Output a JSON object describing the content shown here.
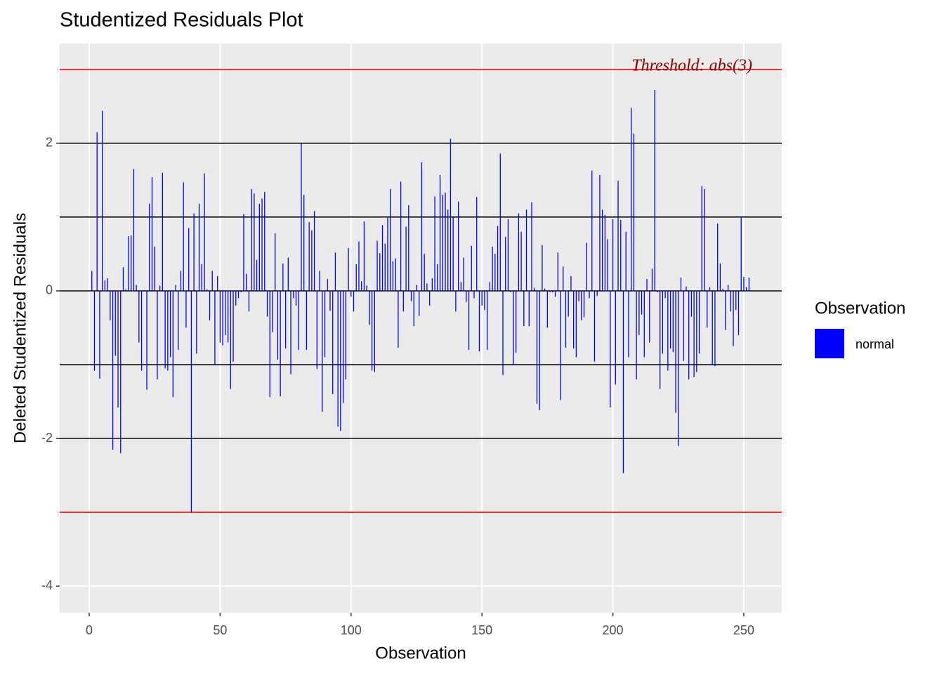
{
  "chart_data": {
    "type": "bar",
    "title": "Studentized Residuals Plot",
    "x_label": "Observation",
    "y_label": "Deleted Studentized Residuals",
    "annotation": "Threshold: abs(3)",
    "legend_title": "Observation",
    "legend_position": "right",
    "grid": true,
    "xlim": [
      -11.27,
      264.5
    ],
    "ylim": [
      -4.36,
      3.35
    ],
    "xticks": [
      0,
      50,
      100,
      150,
      200,
      250
    ],
    "yticks": [
      -4,
      -2,
      0,
      2
    ],
    "threshold_lines": [
      -3,
      3
    ],
    "threshold_color": "#ff0000",
    "reference_lines": [
      -2,
      -1,
      0,
      1,
      2
    ],
    "reference_color": "#000000",
    "series": [
      {
        "name": "normal",
        "color": "#0000ff",
        "x": [
          1,
          2,
          3,
          4,
          5,
          6,
          7,
          8,
          9,
          10,
          11,
          12,
          13,
          14,
          15,
          16,
          17,
          18,
          19,
          20,
          21,
          22,
          23,
          24,
          25,
          26,
          27,
          28,
          29,
          30,
          31,
          32,
          33,
          34,
          35,
          36,
          37,
          38,
          39,
          40,
          41,
          42,
          43,
          44,
          45,
          46,
          47,
          48,
          49,
          50,
          51,
          52,
          53,
          54,
          55,
          56,
          57,
          58,
          59,
          60,
          61,
          62,
          63,
          64,
          65,
          66,
          67,
          68,
          69,
          70,
          71,
          72,
          73,
          74,
          75,
          76,
          77,
          78,
          79,
          80,
          81,
          82,
          83,
          84,
          85,
          86,
          87,
          88,
          89,
          90,
          91,
          92,
          93,
          94,
          95,
          96,
          97,
          98,
          99,
          100,
          101,
          102,
          103,
          104,
          105,
          106,
          107,
          108,
          109,
          110,
          111,
          112,
          113,
          114,
          115,
          116,
          117,
          118,
          119,
          120,
          121,
          122,
          123,
          124,
          125,
          126,
          127,
          128,
          129,
          130,
          131,
          132,
          133,
          134,
          135,
          136,
          137,
          138,
          139,
          140,
          141,
          142,
          143,
          144,
          145,
          146,
          147,
          148,
          149,
          150,
          151,
          152,
          153,
          154,
          155,
          156,
          157,
          158,
          159,
          160,
          161,
          162,
          163,
          164,
          165,
          166,
          167,
          168,
          169,
          170,
          171,
          172,
          173,
          174,
          175,
          176,
          177,
          178,
          179,
          180,
          181,
          182,
          183,
          184,
          185,
          186,
          187,
          188,
          189,
          190,
          191,
          192,
          193,
          194,
          195,
          196,
          197,
          198,
          199,
          200,
          201,
          202,
          203,
          204,
          205,
          206,
          207,
          208,
          209,
          210,
          211,
          212,
          213,
          214,
          215,
          216,
          217,
          218,
          219,
          220,
          221,
          222,
          223,
          224,
          225,
          226,
          227,
          228,
          229,
          230,
          231,
          232,
          233,
          234,
          235,
          236,
          237,
          238,
          239,
          240,
          241,
          242,
          243,
          244,
          245,
          246,
          247,
          248,
          249,
          250,
          251,
          252
        ],
        "values": [
          0.27,
          -1.08,
          2.15,
          -1.19,
          2.44,
          0.14,
          0.17,
          -0.4,
          -2.15,
          -0.88,
          -1.58,
          -2.2,
          0.32,
          0.02,
          0.74,
          0.75,
          1.65,
          0.08,
          -0.7,
          -1.08,
          0.01,
          -1.34,
          1.18,
          1.54,
          0.6,
          -1.2,
          0.07,
          1.6,
          -1.05,
          -1.08,
          -0.9,
          -1.44,
          0.08,
          -0.8,
          0.27,
          1.47,
          -0.5,
          0.85,
          -3.0,
          1.05,
          -0.85,
          1.18,
          0.36,
          1.59,
          0.02,
          -0.4,
          0.27,
          -1.0,
          0.2,
          -0.7,
          -0.74,
          -0.6,
          -0.7,
          -1.33,
          -0.96,
          -0.2,
          -0.1,
          -0.02,
          1.04,
          0.23,
          -0.28,
          1.38,
          1.32,
          0.42,
          1.18,
          1.25,
          1.34,
          -0.35,
          -1.44,
          -0.56,
          0.78,
          -0.93,
          -1.43,
          0.37,
          -0.78,
          0.45,
          -1.13,
          -0.1,
          -0.2,
          -0.8,
          2.0,
          1.3,
          -0.8,
          0.93,
          0.82,
          1.08,
          -1.06,
          0.27,
          -1.64,
          -0.9,
          0.16,
          -0.27,
          -1.4,
          0.52,
          -1.84,
          -1.9,
          -1.52,
          -1.2,
          0.58,
          -0.08,
          -0.28,
          0.36,
          0.67,
          0.13,
          0.94,
          0.07,
          -0.46,
          -1.08,
          -1.1,
          0.68,
          0.51,
          0.89,
          0.64,
          0.99,
          1.38,
          0.4,
          0.44,
          -0.77,
          1.48,
          -0.28,
          0.87,
          1.16,
          -0.14,
          -0.48,
          0.08,
          -0.34,
          1.74,
          0.5,
          0.1,
          -0.2,
          0.17,
          1.28,
          0.36,
          1.57,
          1.3,
          1.33,
          1.1,
          2.06,
          1.0,
          -0.28,
          1.21,
          0.12,
          0.45,
          -0.15,
          -0.8,
          0.61,
          -0.1,
          1.27,
          -0.82,
          -0.2,
          -0.26,
          -0.8,
          0.12,
          0.6,
          0.5,
          0.88,
          1.86,
          -1.14,
          0.73,
          0.97,
          -0.02,
          -1.0,
          -0.84,
          1.05,
          0.8,
          -0.48,
          1.1,
          -0.48,
          1.2,
          0.04,
          -1.53,
          -1.62,
          0.62,
          0.03,
          -0.5,
          -0.02,
          -0.02,
          -0.08,
          0.52,
          -1.48,
          0.33,
          -0.77,
          -0.35,
          0.2,
          -0.78,
          -0.9,
          -0.14,
          -0.4,
          -0.36,
          0.65,
          -0.1,
          1.63,
          -0.96,
          -0.07,
          1.57,
          1.1,
          1.03,
          0.7,
          -1.58,
          0.97,
          -1.27,
          1.49,
          0.96,
          -2.47,
          0.8,
          -0.9,
          2.48,
          2.13,
          -1.2,
          -0.6,
          -0.32,
          -0.9,
          0.16,
          -0.7,
          0.3,
          2.72,
          -0.02,
          -1.33,
          -0.85,
          -0.1,
          -1.08,
          -0.78,
          -0.83,
          -1.65,
          -2.1,
          0.18,
          -0.95,
          0.06,
          -1.2,
          -0.35,
          -1.17,
          -1.1,
          -0.85,
          1.42,
          1.38,
          -0.5,
          0.05,
          -1.0,
          -1.02,
          0.91,
          0.37,
          0.03,
          -0.53,
          0.08,
          -0.28,
          -0.75,
          -0.26,
          -0.6,
          0.99,
          0.19,
          0.05,
          0.18
        ]
      }
    ]
  }
}
